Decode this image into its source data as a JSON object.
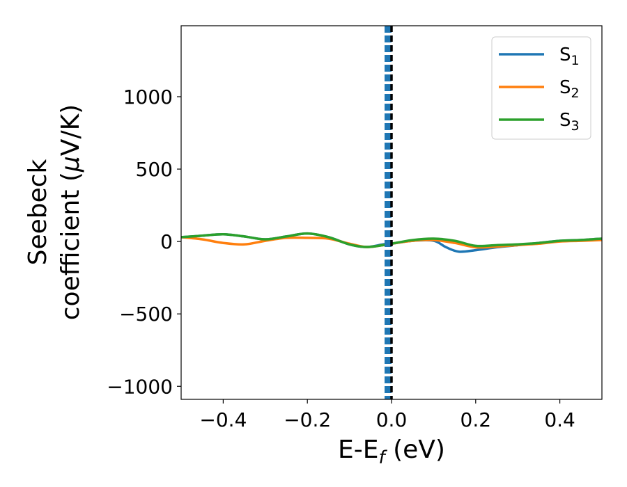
{
  "chart_data": {
    "type": "line",
    "xlabel_main": "E-E",
    "xlabel_sub": "f",
    "xlabel_unit": " (eV)",
    "ylabel_line1": "Seebeck",
    "ylabel_line2": "coefficient  (",
    "ylabel_mu": "μ",
    "ylabel_unit": "V/K)",
    "xlim": [
      -0.5,
      0.5
    ],
    "ylim": [
      -1090,
      1490
    ],
    "xticks": [
      -0.4,
      -0.2,
      0.0,
      0.2,
      0.4
    ],
    "xtick_labels": [
      "−0.4",
      "−0.2",
      "0.0",
      "0.2",
      "0.4"
    ],
    "yticks": [
      -1000,
      -500,
      0,
      500,
      1000
    ],
    "ytick_labels": [
      "−1000",
      "−500",
      "0",
      "500",
      "1000"
    ],
    "legend_position": "top-right",
    "vline": {
      "x": 0.0,
      "colors": [
        "#1f77b4",
        "#000000"
      ]
    },
    "series": [
      {
        "name": "S",
        "subscript": "1",
        "color": "#1f77b4",
        "x": [
          -0.5,
          -0.45,
          -0.4,
          -0.35,
          -0.3,
          -0.25,
          -0.2,
          -0.15,
          -0.1,
          -0.06,
          -0.02,
          0.0,
          0.05,
          0.1,
          0.13,
          0.16,
          0.2,
          0.25,
          0.3,
          0.35,
          0.4,
          0.45,
          0.5
        ],
        "values": [
          30,
          40,
          50,
          35,
          15,
          35,
          55,
          30,
          -20,
          -38,
          -20,
          -15,
          5,
          5,
          -40,
          -70,
          -60,
          -40,
          -25,
          -10,
          5,
          10,
          20
        ]
      },
      {
        "name": "S",
        "subscript": "2",
        "color": "#ff7f0e",
        "x": [
          -0.5,
          -0.45,
          -0.4,
          -0.35,
          -0.3,
          -0.25,
          -0.2,
          -0.15,
          -0.1,
          -0.06,
          -0.02,
          0.0,
          0.05,
          0.1,
          0.15,
          0.2,
          0.25,
          0.3,
          0.35,
          0.4,
          0.45,
          0.5
        ],
        "values": [
          30,
          15,
          -10,
          -20,
          5,
          25,
          25,
          20,
          -15,
          -38,
          -25,
          -15,
          5,
          10,
          -10,
          -40,
          -35,
          -25,
          -15,
          0,
          5,
          10
        ]
      },
      {
        "name": "S",
        "subscript": "3",
        "color": "#2ca02c",
        "x": [
          -0.5,
          -0.45,
          -0.4,
          -0.35,
          -0.3,
          -0.25,
          -0.2,
          -0.15,
          -0.1,
          -0.06,
          -0.02,
          0.0,
          0.05,
          0.1,
          0.15,
          0.2,
          0.25,
          0.3,
          0.35,
          0.4,
          0.45,
          0.5
        ],
        "values": [
          30,
          40,
          50,
          35,
          15,
          35,
          55,
          30,
          -20,
          -38,
          -25,
          -15,
          10,
          20,
          5,
          -30,
          -25,
          -20,
          -10,
          5,
          10,
          20
        ]
      }
    ]
  }
}
